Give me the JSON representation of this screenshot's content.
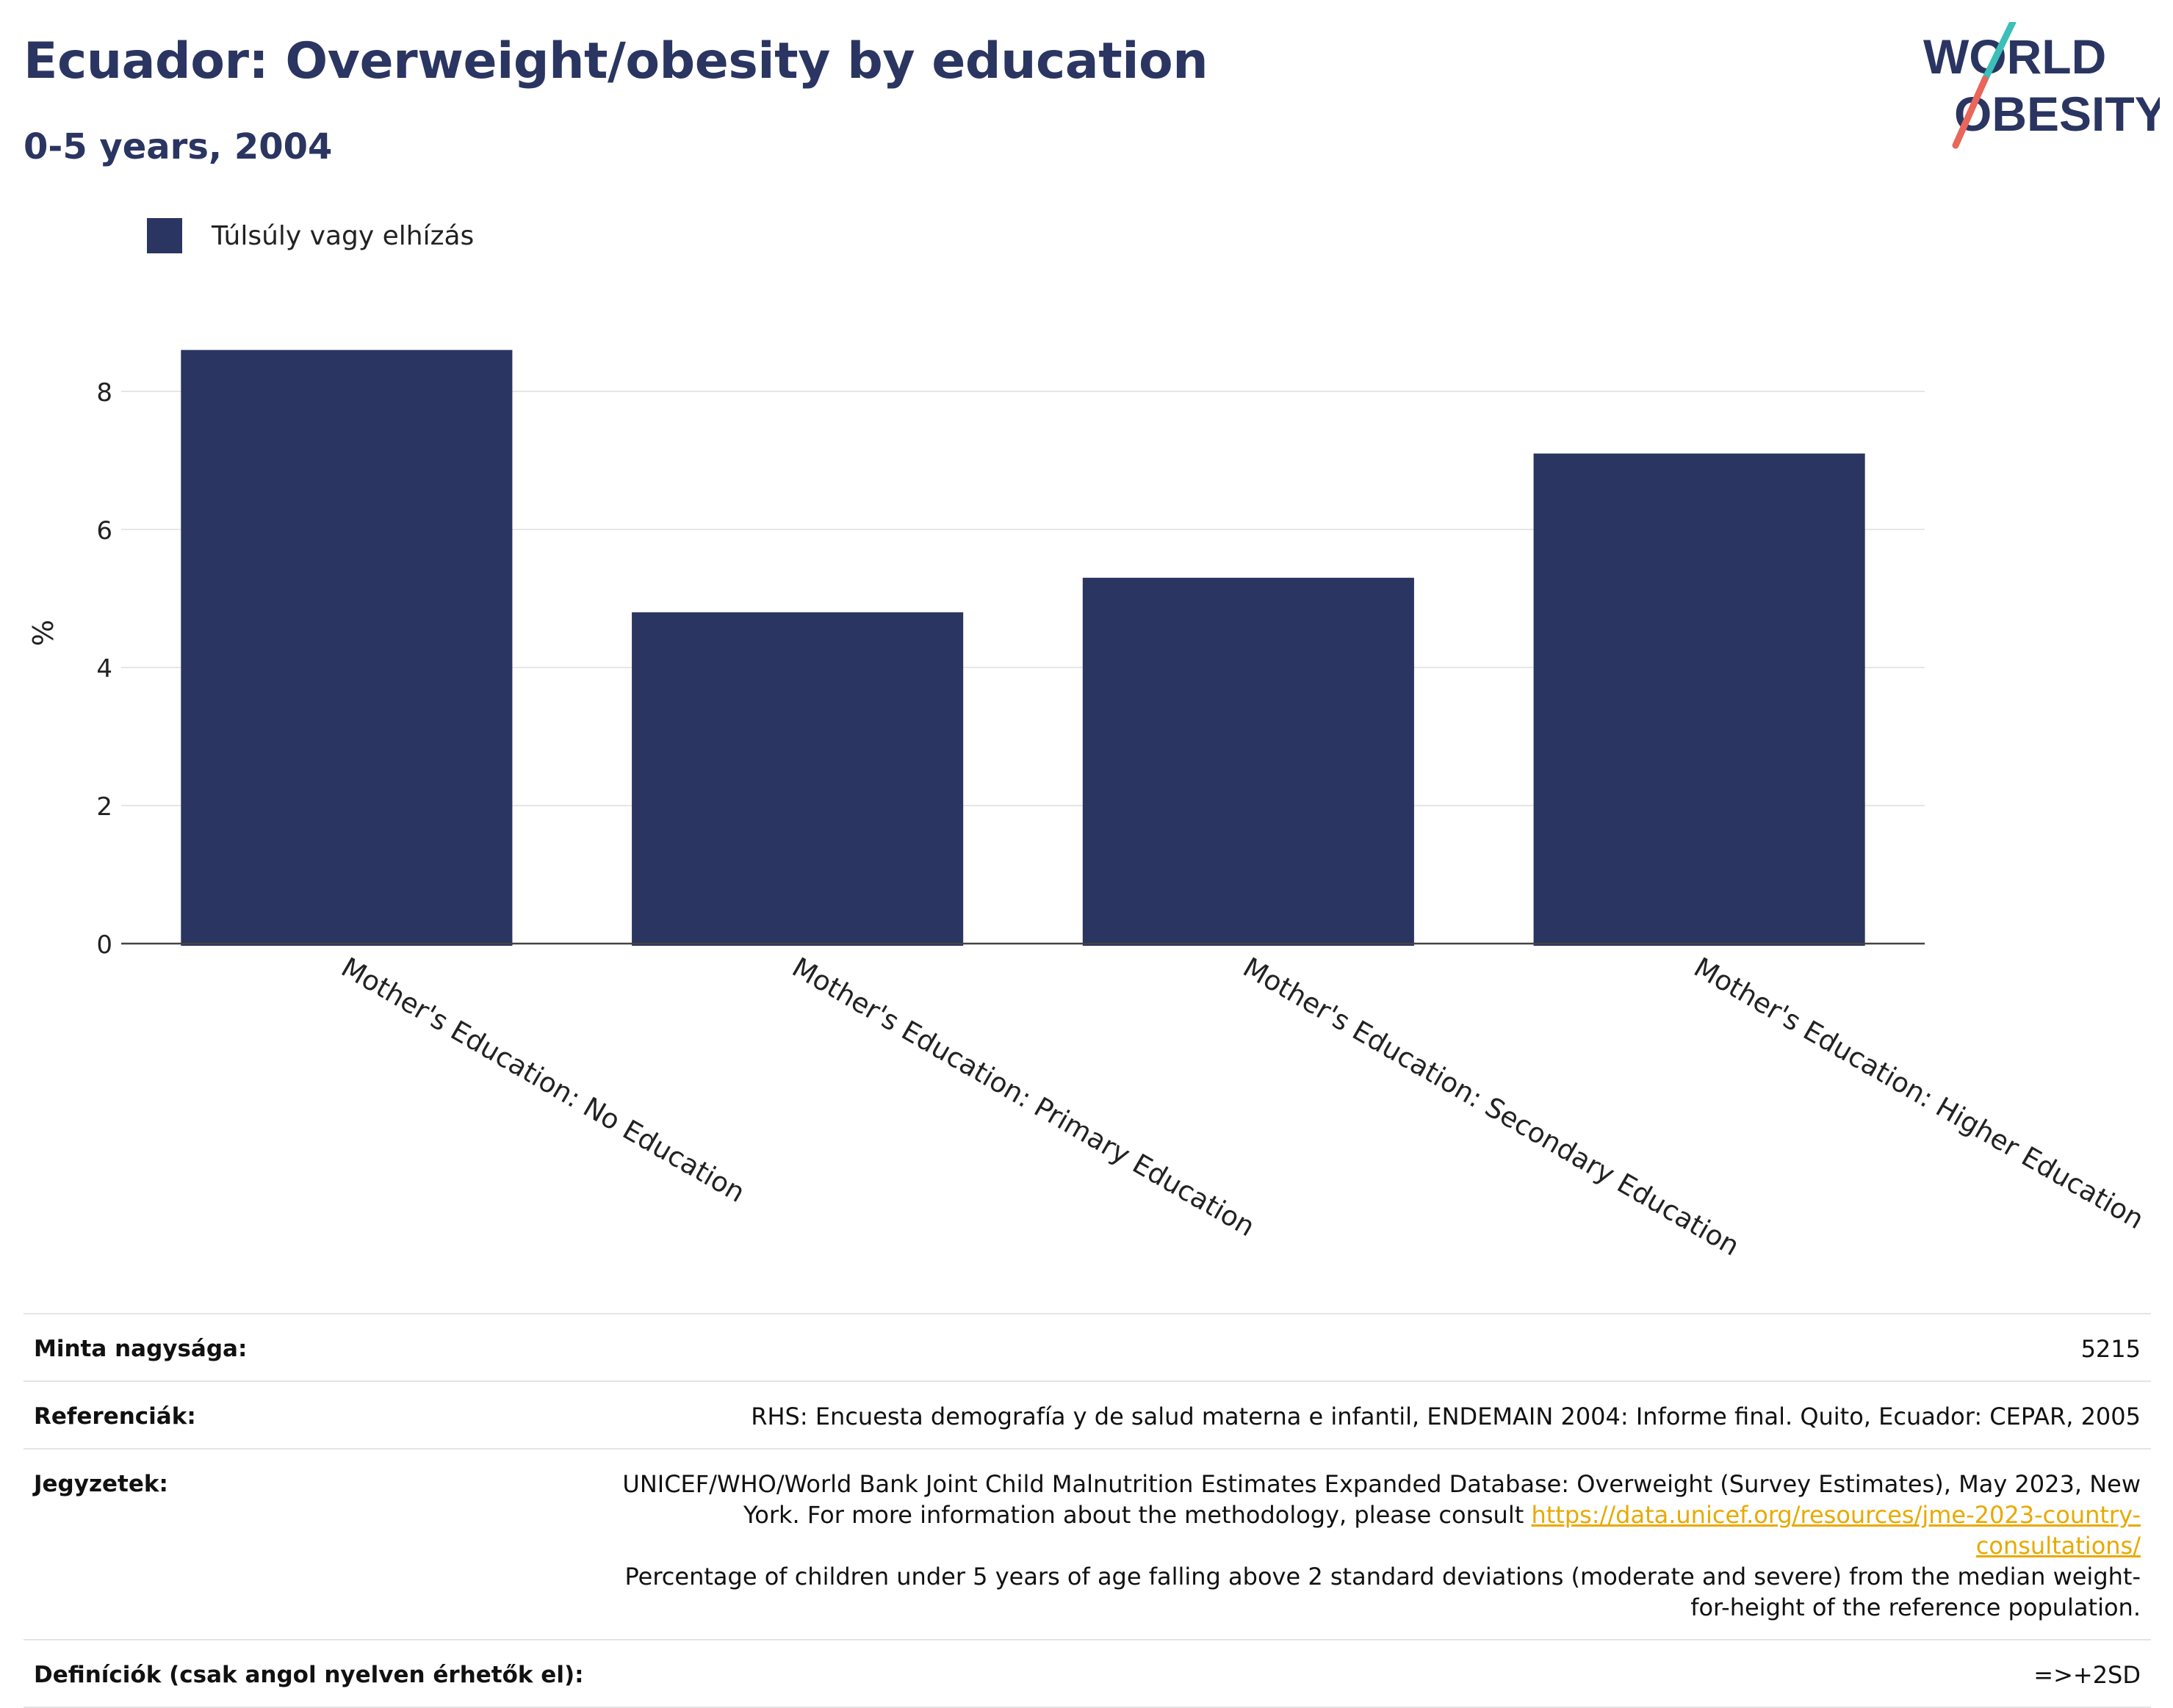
{
  "title": "Ecuador: Overweight/obesity by education",
  "subtitle": "0-5 years, 2004",
  "logo": {
    "line1": "WORLD",
    "line2": "OBESITY"
  },
  "legend": {
    "label": "Túlsúly vagy elhízás",
    "color": "#2a3561"
  },
  "chart_data": {
    "type": "bar",
    "categories": [
      "Mother's Education: No Education",
      "Mother's Education: Primary Education",
      "Mother's Education: Secondary Education",
      "Mother's Education: Higher Education"
    ],
    "series": [
      {
        "name": "Túlsúly vagy elhízás",
        "values": [
          8.6,
          4.8,
          5.3,
          7.1
        ],
        "color": "#2a3561"
      }
    ],
    "ylabel": "%",
    "xlabel": "",
    "ylim": [
      0,
      9
    ],
    "yticks": [
      0,
      2,
      4,
      6,
      8
    ],
    "grid": true
  },
  "meta": {
    "sample_label": "Minta nagysága:",
    "sample_value": "5215",
    "references_label": "Referenciák:",
    "references_value": "RHS: Encuesta demografía y de salud materna e infantil, ENDEMAIN 2004: Informe final. Quito, Ecuador: CEPAR, 2005",
    "notes_label": "Jegyzetek:",
    "notes_text_1": "UNICEF/WHO/World Bank Joint Child Malnutrition Estimates Expanded Database: Overweight (Survey Estimates), May 2023, New York. For more information about the methodology, please consult ",
    "notes_link": "https://data.unicef.org/resources/jme-2023-country-consultations/",
    "notes_text_2": "Percentage of children under 5 years of age falling above 2 standard deviations (moderate and severe) from the median weight-for-height of the reference population.",
    "definitions_label": "Definíciók (csak angol nyelven érhetők el):",
    "definitions_value": "=>+2SD"
  }
}
